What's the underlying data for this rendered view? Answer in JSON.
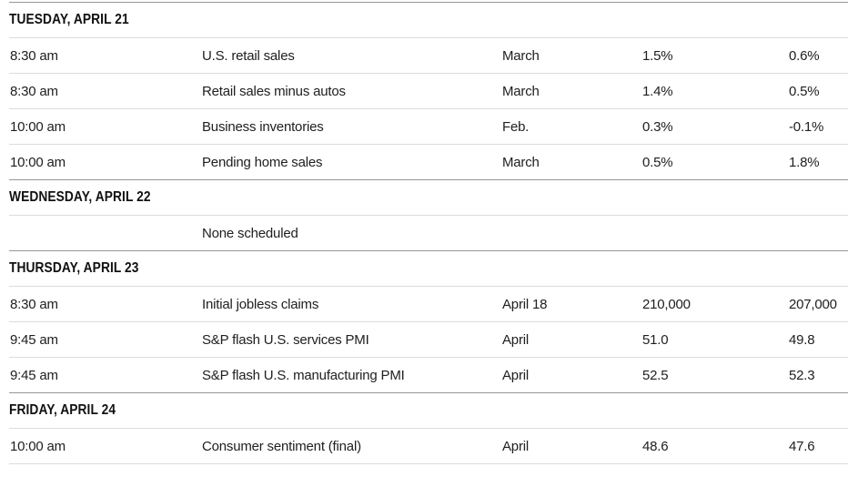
{
  "table": {
    "sections": [
      {
        "day": "TUESDAY, APRIL 21",
        "rows": [
          {
            "time": "8:30 am",
            "report": "U.S. retail sales",
            "period": "March",
            "forecast": "1.5%",
            "previous": "0.6%"
          },
          {
            "time": "8:30 am",
            "report": "Retail sales minus autos",
            "period": "March",
            "forecast": "1.4%",
            "previous": "0.5%"
          },
          {
            "time": "10:00 am",
            "report": "Business inventories",
            "period": "Feb.",
            "forecast": "0.3%",
            "previous": "-0.1%"
          },
          {
            "time": "10:00 am",
            "report": "Pending home sales",
            "period": "March",
            "forecast": "0.5%",
            "previous": "1.8%"
          }
        ]
      },
      {
        "day": "WEDNESDAY, APRIL 22",
        "rows": [
          {
            "time": "",
            "report": "None scheduled",
            "period": "",
            "forecast": "",
            "previous": ""
          }
        ]
      },
      {
        "day": "THURSDAY, APRIL 23",
        "rows": [
          {
            "time": "8:30 am",
            "report": "Initial jobless claims",
            "period": "April 18",
            "forecast": "210,000",
            "previous": "207,000"
          },
          {
            "time": "9:45 am",
            "report": "S&P flash U.S. services PMI",
            "period": "April",
            "forecast": "51.0",
            "previous": "49.8"
          },
          {
            "time": "9:45 am",
            "report": "S&P flash U.S. manufacturing PMI",
            "period": "April",
            "forecast": "52.5",
            "previous": "52.3"
          }
        ]
      },
      {
        "day": "FRIDAY, APRIL 24",
        "rows": [
          {
            "time": "10:00 am",
            "report": "Consumer sentiment (final)",
            "period": "April",
            "forecast": "48.6",
            "previous": "47.6"
          }
        ]
      }
    ]
  },
  "colors": {
    "background": "#ffffff",
    "row_divider": "#dcdcdc",
    "section_divider": "#979797",
    "body_text": "#202020",
    "day_header_text": "#111111"
  }
}
